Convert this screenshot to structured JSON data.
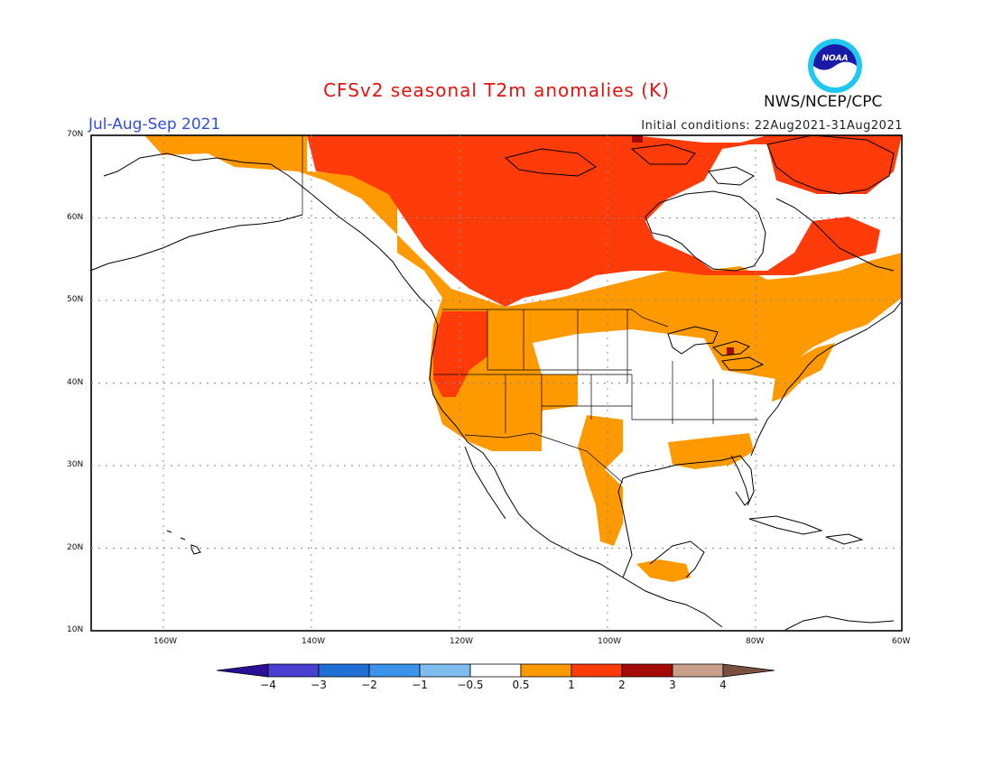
{
  "header": {
    "title": "CFSv2 seasonal T2m anomalies (K)",
    "season": "Jul-Aug-Sep 2021",
    "initial_conditions": "Initial conditions: 22Aug2021-31Aug2021",
    "agency": "NWS/NCEP/CPC",
    "logo_text": "NOAA"
  },
  "axes": {
    "lat_labels": [
      "70N",
      "60N",
      "50N",
      "40N",
      "30N",
      "20N",
      "10N"
    ],
    "lon_labels": [
      "160W",
      "140W",
      "120W",
      "100W",
      "80W",
      "60W"
    ]
  },
  "colorbar": {
    "labels": [
      "-4",
      "-3",
      "-2",
      "-1",
      "-0.5",
      "0.5",
      "1",
      "2",
      "3",
      "4"
    ],
    "colors": [
      "#2a0f99",
      "#4a3fd0",
      "#1f6fd6",
      "#3b93ea",
      "#7fbdf0",
      "#ffffff",
      "#ff9900",
      "#ff3b0a",
      "#a30a08",
      "#c8a08a",
      "#7a5040"
    ]
  },
  "colors": {
    "anomaly_0.5_1": "#ff9900",
    "anomaly_1_2": "#ff3b0a",
    "anomaly_2_3": "#a30a08",
    "title": "#e8120c",
    "season": "#2f4fd8"
  }
}
